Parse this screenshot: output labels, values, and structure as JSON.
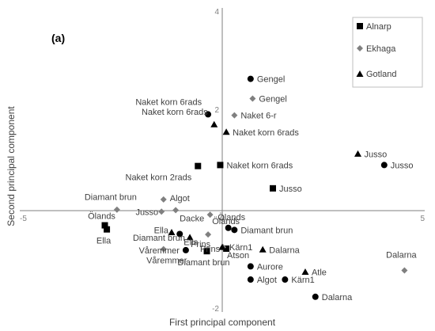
{
  "chart_data": {
    "type": "scatter",
    "panel_label": "(a)",
    "xlabel": "First principal component",
    "ylabel": "Second principal component",
    "xlim": [
      -5,
      5
    ],
    "ylim": [
      -2,
      4
    ],
    "x_ticks": [
      {
        "value": -5,
        "label": "-5"
      },
      {
        "value": 0,
        "label": "0"
      },
      {
        "value": 5,
        "label": "5"
      }
    ],
    "y_ticks": [
      {
        "value": -2,
        "label": "-2"
      },
      {
        "value": 0,
        "label": "0"
      },
      {
        "value": 2,
        "label": "2"
      },
      {
        "value": 4,
        "label": "4"
      }
    ],
    "grid": false,
    "legend_position": "top-right",
    "series": [
      {
        "name": "Alnarp",
        "marker": "square",
        "color": "#000000",
        "points": [
          {
            "x": -0.6,
            "y": 0.88,
            "label": "Naket korn 2rads"
          },
          {
            "x": -0.05,
            "y": 0.9,
            "label": "Naket korn 6rads"
          },
          {
            "x": 1.25,
            "y": 0.44,
            "label": "Jusso"
          },
          {
            "x": -2.9,
            "y": -0.29,
            "label": "Ölands"
          },
          {
            "x": -2.85,
            "y": -0.37,
            "label": "Ella"
          },
          {
            "x": -0.38,
            "y": -0.8,
            "label": "Diamant brun"
          },
          {
            "x": 0.1,
            "y": -0.75,
            "label": "Prins"
          }
        ]
      },
      {
        "name": "Ekhaga",
        "marker": "diamond",
        "color": "#808080",
        "points": [
          {
            "x": 0.75,
            "y": 2.21,
            "label": "Gengel"
          },
          {
            "x": 0.3,
            "y": 1.88,
            "label": "Naket 6-r"
          },
          {
            "x": -2.6,
            "y": 0.02,
            "label": "Diamant brun"
          },
          {
            "x": -1.45,
            "y": 0.22,
            "label": "Algot"
          },
          {
            "x": -1.5,
            "y": -0.02,
            "label": "Jusso"
          },
          {
            "x": -1.15,
            "y": 0.01,
            "label": "Dacke"
          },
          {
            "x": -0.3,
            "y": -0.08,
            "label": "Ölands"
          },
          {
            "x": -0.35,
            "y": -0.47,
            "label": "Prins"
          },
          {
            "x": -1.45,
            "y": -0.76,
            "label": "Våremmer"
          },
          {
            "x": 4.5,
            "y": -1.18,
            "label": "Dalarna"
          },
          {
            "x": 0.02,
            "y": -0.72,
            "label": "Kärn1"
          }
        ]
      },
      {
        "name": "Gotland",
        "marker": "triangle",
        "color": "#000000",
        "points": [
          {
            "x": -0.2,
            "y": 1.7,
            "label": "Naket korn 6rads"
          },
          {
            "x": 0.1,
            "y": 1.55,
            "label": "Naket korn 6rads"
          },
          {
            "x": 3.35,
            "y": 1.12,
            "label": "Jusso"
          },
          {
            "x": -1.25,
            "y": -0.43,
            "label": "Ella"
          },
          {
            "x": -0.8,
            "y": -0.53,
            "label": "Diamant brun"
          },
          {
            "x": 0.0,
            "y": -0.72,
            "label": "Atson"
          },
          {
            "x": 1.0,
            "y": -0.77,
            "label": "Dalarna"
          },
          {
            "x": 2.05,
            "y": -1.21,
            "label": "Atle"
          }
        ]
      },
      {
        "name": "",
        "marker": "circle",
        "color": "#000000",
        "points": [
          {
            "x": 0.7,
            "y": 2.6,
            "label": "Gengel"
          },
          {
            "x": -0.35,
            "y": 1.9,
            "label": "Naket korn 6rads"
          },
          {
            "x": 4.0,
            "y": 0.9,
            "label": "Jusso"
          },
          {
            "x": -1.05,
            "y": -0.46,
            "label": "Ella"
          },
          {
            "x": 0.15,
            "y": -0.34,
            "label": "Ölands"
          },
          {
            "x": 0.3,
            "y": -0.38,
            "label": "Diamant brun"
          },
          {
            "x": -0.9,
            "y": -0.78,
            "label": "Våremmer"
          },
          {
            "x": 0.7,
            "y": -1.1,
            "label": "Aurore"
          },
          {
            "x": 0.7,
            "y": -1.36,
            "label": "Algot"
          },
          {
            "x": 1.55,
            "y": -1.36,
            "label": "Kärn1"
          },
          {
            "x": 2.3,
            "y": -1.7,
            "label": "Dalarna"
          }
        ]
      }
    ]
  }
}
